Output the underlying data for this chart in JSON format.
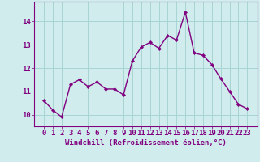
{
  "x": [
    0,
    1,
    2,
    3,
    4,
    5,
    6,
    7,
    8,
    9,
    10,
    11,
    12,
    13,
    14,
    15,
    16,
    17,
    18,
    19,
    20,
    21,
    22,
    23
  ],
  "y": [
    10.6,
    10.2,
    9.9,
    11.3,
    11.5,
    11.2,
    11.4,
    11.1,
    11.1,
    10.85,
    12.3,
    12.9,
    13.1,
    12.85,
    13.4,
    13.2,
    14.4,
    12.65,
    12.55,
    12.15,
    11.55,
    11.0,
    10.45,
    10.25
  ],
  "line_color": "#800080",
  "marker": "D",
  "marker_size": 2.2,
  "bg_color": "#d0ecec",
  "grid_color": "#a8d4d4",
  "xlabel": "Windchill (Refroidissement éolien,°C)",
  "xlabel_fontsize": 6.5,
  "tick_fontsize": 6.5,
  "ylim": [
    9.5,
    14.85
  ],
  "yticks": [
    10,
    11,
    12,
    13,
    14
  ],
  "xticks": [
    0,
    1,
    2,
    3,
    4,
    5,
    6,
    7,
    8,
    9,
    10,
    11,
    12,
    13,
    14,
    15,
    16,
    17,
    18,
    19,
    20,
    21,
    22,
    23
  ],
  "spine_color": "#800080",
  "linewidth": 1.0
}
